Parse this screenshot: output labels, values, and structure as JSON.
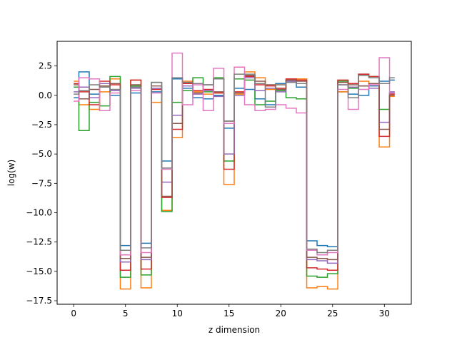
{
  "chart_data": {
    "type": "line",
    "step": "mid",
    "title": "",
    "xlabel": "z dimension",
    "ylabel": "log(w)",
    "xlim": [
      -1.6,
      32.6
    ],
    "ylim": [
      -17.8,
      4.6
    ],
    "xticks": [
      0,
      5,
      10,
      15,
      20,
      25,
      30
    ],
    "yticks": [
      2.5,
      0.0,
      -2.5,
      -5.0,
      -7.5,
      -10.0,
      -12.5,
      -15.0,
      -17.5
    ],
    "ytick_labels": [
      "2.5",
      "0.0",
      "−2.5",
      "−5.0",
      "−7.5",
      "−10.0",
      "−12.5",
      "−15.0",
      "−17.5"
    ],
    "grid": false,
    "legend": "none",
    "x": [
      0,
      1,
      2,
      3,
      4,
      5,
      6,
      7,
      8,
      9,
      10,
      11,
      12,
      13,
      14,
      15,
      16,
      17,
      18,
      19,
      20,
      21,
      22,
      23,
      24,
      25,
      26,
      27,
      28,
      29,
      30,
      31
    ],
    "series": [
      {
        "color": "#1f77b4",
        "values": [
          -0.2,
          2.0,
          0.1,
          0.7,
          0.0,
          -12.8,
          0.2,
          -12.6,
          0.3,
          -5.6,
          1.4,
          0.6,
          -0.2,
          -0.3,
          0.0,
          -2.8,
          0.6,
          0.5,
          -0.3,
          -0.8,
          1.0,
          1.2,
          0.7,
          -12.4,
          -12.8,
          -12.9,
          0.3,
          0.1,
          0.0,
          0.8,
          1.2,
          1.3
        ]
      },
      {
        "color": "#ff7f0e",
        "values": [
          1.2,
          -0.8,
          -1.2,
          0.3,
          1.4,
          -16.5,
          1.3,
          -16.4,
          -0.6,
          -9.8,
          -3.6,
          1.2,
          0.3,
          0.1,
          0.2,
          -7.6,
          0.1,
          2.0,
          1.5,
          0.5,
          0.9,
          1.3,
          1.4,
          -16.4,
          -16.3,
          -16.5,
          0.3,
          1.0,
          1.2,
          1.0,
          -4.4,
          -0.1
        ]
      },
      {
        "color": "#2ca02c",
        "values": [
          0.7,
          -3.0,
          -0.6,
          -0.9,
          1.6,
          -15.5,
          0.8,
          -15.3,
          1.1,
          -9.9,
          -0.6,
          0.4,
          1.5,
          0.3,
          1.5,
          -5.6,
          1.4,
          1.3,
          -0.8,
          -0.5,
          0.4,
          -0.2,
          -0.3,
          -15.4,
          -15.5,
          -15.2,
          1.2,
          0.6,
          1.8,
          1.6,
          -1.2,
          0.2
        ]
      },
      {
        "color": "#d62728",
        "values": [
          1.0,
          0.3,
          -0.8,
          1.2,
          0.9,
          -14.9,
          1.3,
          -14.8,
          0.5,
          -8.7,
          -2.9,
          1.0,
          0.4,
          0.5,
          0.2,
          -6.3,
          0.3,
          1.6,
          0.9,
          0.8,
          0.6,
          1.4,
          1.3,
          -14.7,
          -14.8,
          -14.9,
          1.3,
          1.0,
          1.8,
          1.6,
          -3.5,
          0.1
        ]
      },
      {
        "color": "#9467bd",
        "values": [
          0.3,
          0.7,
          -0.2,
          1.0,
          0.4,
          -14.2,
          0.6,
          -14.0,
          0.6,
          -7.4,
          -1.7,
          0.8,
          0.1,
          0.4,
          -0.1,
          -5.0,
          0.0,
          1.5,
          0.4,
          0.6,
          0.3,
          1.2,
          1.0,
          -14.0,
          -14.1,
          -14.3,
          0.9,
          0.7,
          0.8,
          0.6,
          -2.3,
          0.3
        ]
      },
      {
        "color": "#8c564b",
        "values": [
          0.9,
          -0.3,
          0.5,
          0.8,
          1.0,
          -13.9,
          0.9,
          -13.8,
          0.8,
          -8.6,
          -2.4,
          1.1,
          0.2,
          0.9,
          0.3,
          -2.2,
          0.2,
          1.7,
          1.2,
          0.9,
          0.5,
          1.3,
          1.2,
          -13.8,
          -13.9,
          -14.0,
          1.1,
          0.9,
          0.8,
          1.0,
          -2.9,
          0.0
        ]
      },
      {
        "color": "#e377c2",
        "values": [
          -0.5,
          1.5,
          1.4,
          -1.3,
          0.2,
          -13.6,
          0.4,
          -13.4,
          0.2,
          -6.3,
          3.6,
          -0.8,
          0.9,
          -1.3,
          2.3,
          -2.4,
          2.4,
          -0.8,
          -1.3,
          -1.2,
          -0.8,
          -1.1,
          -1.5,
          -13.2,
          -13.6,
          -13.4,
          0.5,
          -1.2,
          0.5,
          0.9,
          3.2,
          0.2
        ]
      },
      {
        "color": "#7f7f7f",
        "values": [
          0.1,
          0.4,
          0.9,
          0.7,
          0.5,
          -13.2,
          0.7,
          -13.0,
          1.1,
          -6.2,
          1.5,
          1.1,
          1.0,
          0.9,
          1.4,
          -2.2,
          1.8,
          1.8,
          1.0,
          -1.0,
          0.9,
          1.1,
          1.0,
          -13.1,
          -13.4,
          -13.2,
          0.9,
          -0.2,
          1.7,
          1.5,
          1.0,
          1.5
        ]
      }
    ]
  }
}
